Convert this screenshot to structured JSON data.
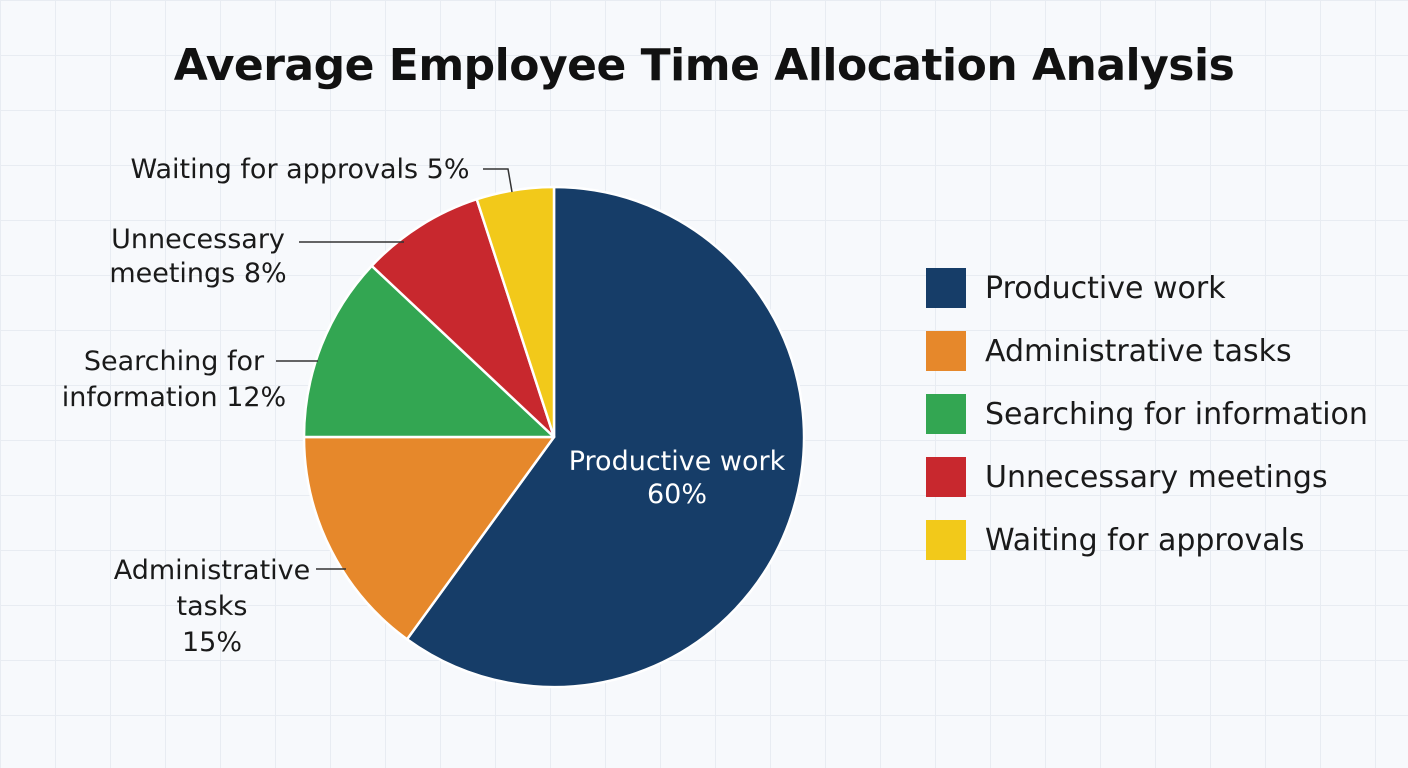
{
  "chart_data": {
    "type": "pie",
    "title": "Average Employee Time Allocation Analysis",
    "slices": [
      {
        "label": "Productive work",
        "value": 60,
        "color": "#163d68",
        "callout_lines": [
          "Productive work",
          "60%"
        ]
      },
      {
        "label": "Administrative tasks",
        "value": 15,
        "color": "#e6882b",
        "callout_lines": [
          "Administrative",
          "tasks",
          "15%"
        ]
      },
      {
        "label": "Searching for information",
        "value": 12,
        "color": "#33a652",
        "callout_lines": [
          "Searching for",
          "information 12%"
        ]
      },
      {
        "label": "Unnecessary meetings",
        "value": 8,
        "color": "#c8282e",
        "callout_lines": [
          "Unnecessary",
          "meetings 8%"
        ]
      },
      {
        "label": "Waiting for approvals",
        "value": 5,
        "color": "#f2c91a",
        "callout_lines": [
          "Waiting for approvals 5%"
        ]
      }
    ],
    "legend": {
      "position": "right"
    },
    "grid": true
  }
}
